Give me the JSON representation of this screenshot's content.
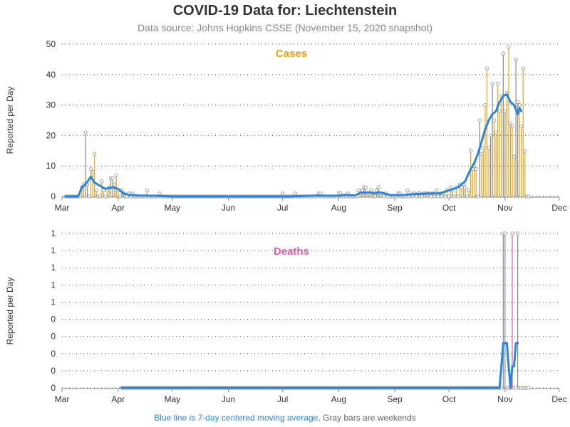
{
  "header": {
    "title": "COVID-19 Data for: Liechtenstein",
    "subtitle": "Data source: Johns Hopkins CSSE (November 15, 2020 snapshot)"
  },
  "footnote": {
    "blue_text": "Blue line is 7-day centered moving average,",
    "gray_text": "Gray bars are weekends"
  },
  "colors": {
    "cases": "#e8a317",
    "deaths": "#e85aa8",
    "moving_average": "#2b86d9",
    "weekend": "#888888"
  },
  "chart_data": [
    {
      "type": "bar",
      "panel": "cases",
      "title": "Cases",
      "ylabel": "Reported per Day",
      "ylim": [
        0,
        50
      ],
      "yticks": [
        "0",
        "10",
        "20",
        "30",
        "40",
        "50"
      ],
      "xlim": [
        "2020-03-01",
        "2020-12-01"
      ],
      "xticks": [
        "Mar",
        "Apr",
        "May",
        "Jun",
        "Jul",
        "Aug",
        "Sep",
        "Oct",
        "Nov",
        "Dec"
      ],
      "date_range": [
        "2020-03-03",
        "2020-11-14"
      ],
      "points": [
        [
          "2020-03-12",
          3
        ],
        [
          "2020-03-13",
          4
        ],
        [
          "2020-03-14",
          21
        ],
        [
          "2020-03-15",
          4
        ],
        [
          "2020-03-17",
          9
        ],
        [
          "2020-03-18",
          8
        ],
        [
          "2020-03-19",
          14
        ],
        [
          "2020-03-20",
          2
        ],
        [
          "2020-03-23",
          5
        ],
        [
          "2020-03-24",
          2
        ],
        [
          "2020-03-26",
          2
        ],
        [
          "2020-03-27",
          3
        ],
        [
          "2020-03-28",
          6
        ],
        [
          "2020-03-29",
          6
        ],
        [
          "2020-03-30",
          4
        ],
        [
          "2020-03-31",
          7
        ],
        [
          "2020-04-01",
          2
        ],
        [
          "2020-04-03",
          2
        ],
        [
          "2020-04-04",
          1
        ],
        [
          "2020-04-07",
          1
        ],
        [
          "2020-04-09",
          1
        ],
        [
          "2020-04-17",
          2
        ],
        [
          "2020-04-24",
          1
        ],
        [
          "2020-07-01",
          1
        ],
        [
          "2020-07-08",
          1
        ],
        [
          "2020-07-21",
          1
        ],
        [
          "2020-07-22",
          1
        ],
        [
          "2020-08-01",
          1
        ],
        [
          "2020-08-02",
          1
        ],
        [
          "2020-08-06",
          1
        ],
        [
          "2020-08-12",
          2
        ],
        [
          "2020-08-13",
          1
        ],
        [
          "2020-08-14",
          2
        ],
        [
          "2020-08-15",
          3
        ],
        [
          "2020-08-16",
          3
        ],
        [
          "2020-08-17",
          1
        ],
        [
          "2020-08-18",
          1
        ],
        [
          "2020-08-19",
          2
        ],
        [
          "2020-08-20",
          1
        ],
        [
          "2020-08-22",
          2
        ],
        [
          "2020-08-23",
          3
        ],
        [
          "2020-08-24",
          1
        ],
        [
          "2020-08-25",
          1
        ],
        [
          "2020-08-27",
          1
        ],
        [
          "2020-09-03",
          1
        ],
        [
          "2020-09-04",
          1
        ],
        [
          "2020-09-08",
          2
        ],
        [
          "2020-09-10",
          1
        ],
        [
          "2020-09-12",
          1
        ],
        [
          "2020-09-14",
          1
        ],
        [
          "2020-09-15",
          1
        ],
        [
          "2020-09-17",
          1
        ],
        [
          "2020-09-18",
          1
        ],
        [
          "2020-09-19",
          1
        ],
        [
          "2020-09-20",
          1
        ],
        [
          "2020-09-22",
          1
        ],
        [
          "2020-09-24",
          2
        ],
        [
          "2020-09-26",
          1
        ],
        [
          "2020-09-28",
          1
        ],
        [
          "2020-09-30",
          2
        ],
        [
          "2020-10-02",
          3
        ],
        [
          "2020-10-03",
          2
        ],
        [
          "2020-10-05",
          3
        ],
        [
          "2020-10-07",
          4
        ],
        [
          "2020-10-08",
          3
        ],
        [
          "2020-10-09",
          4
        ],
        [
          "2020-10-10",
          3
        ],
        [
          "2020-10-12",
          2
        ],
        [
          "2020-10-13",
          15
        ],
        [
          "2020-10-14",
          9
        ],
        [
          "2020-10-15",
          10
        ],
        [
          "2020-10-16",
          9
        ],
        [
          "2020-10-18",
          25
        ],
        [
          "2020-10-19",
          14
        ],
        [
          "2020-10-20",
          16
        ],
        [
          "2020-10-21",
          30
        ],
        [
          "2020-10-22",
          42
        ],
        [
          "2020-10-23",
          16
        ],
        [
          "2020-10-24",
          20
        ],
        [
          "2020-10-25",
          37
        ],
        [
          "2020-10-26",
          25
        ],
        [
          "2020-10-27",
          21
        ],
        [
          "2020-10-28",
          37
        ],
        [
          "2020-10-29",
          28
        ],
        [
          "2020-10-30",
          33
        ],
        [
          "2020-10-31",
          47
        ],
        [
          "2020-11-01",
          28
        ],
        [
          "2020-11-02",
          34
        ],
        [
          "2020-11-03",
          49
        ],
        [
          "2020-11-04",
          24
        ],
        [
          "2020-11-05",
          23
        ],
        [
          "2020-11-06",
          13
        ],
        [
          "2020-11-07",
          45
        ],
        [
          "2020-11-08",
          31
        ],
        [
          "2020-11-09",
          30
        ],
        [
          "2020-11-10",
          23
        ],
        [
          "2020-11-11",
          42
        ],
        [
          "2020-11-12",
          15
        ]
      ],
      "moving_average": [
        [
          "2020-03-03",
          0
        ],
        [
          "2020-03-10",
          0
        ],
        [
          "2020-03-12",
          3
        ],
        [
          "2020-03-14",
          4
        ],
        [
          "2020-03-17",
          6.5
        ],
        [
          "2020-03-19",
          4.5
        ],
        [
          "2020-03-22",
          3.5
        ],
        [
          "2020-03-25",
          2.5
        ],
        [
          "2020-03-29",
          3
        ],
        [
          "2020-04-01",
          2.5
        ],
        [
          "2020-04-04",
          1
        ],
        [
          "2020-04-07",
          0.5
        ],
        [
          "2020-04-12",
          0.3
        ],
        [
          "2020-04-22",
          0.2
        ],
        [
          "2020-05-01",
          0
        ],
        [
          "2020-07-05",
          0
        ],
        [
          "2020-07-20",
          0.3
        ],
        [
          "2020-07-31",
          0.2
        ],
        [
          "2020-08-05",
          0.5
        ],
        [
          "2020-08-10",
          0.3
        ],
        [
          "2020-08-13",
          1.2
        ],
        [
          "2020-08-18",
          1.3
        ],
        [
          "2020-08-21",
          1
        ],
        [
          "2020-08-23",
          1.4
        ],
        [
          "2020-08-26",
          1
        ],
        [
          "2020-08-30",
          0.4
        ],
        [
          "2020-09-05",
          0.4
        ],
        [
          "2020-09-12",
          0.8
        ],
        [
          "2020-09-20",
          1
        ],
        [
          "2020-09-26",
          1
        ],
        [
          "2020-10-01",
          2
        ],
        [
          "2020-10-06",
          3
        ],
        [
          "2020-10-10",
          5
        ],
        [
          "2020-10-13",
          9
        ],
        [
          "2020-10-15",
          11
        ],
        [
          "2020-10-17",
          14
        ],
        [
          "2020-10-19",
          18
        ],
        [
          "2020-10-21",
          22
        ],
        [
          "2020-10-23",
          25
        ],
        [
          "2020-10-25",
          27
        ],
        [
          "2020-10-27",
          28
        ],
        [
          "2020-10-29",
          31
        ],
        [
          "2020-10-31",
          33
        ],
        [
          "2020-11-02",
          33.5
        ],
        [
          "2020-11-04",
          31
        ],
        [
          "2020-11-06",
          30
        ],
        [
          "2020-11-08",
          27
        ],
        [
          "2020-11-09",
          29
        ],
        [
          "2020-11-10",
          28
        ]
      ]
    },
    {
      "type": "bar",
      "panel": "deaths",
      "title": "Deaths",
      "ylabel": "Reported per Day",
      "ylim": [
        0,
        1
      ],
      "yticks": [
        "0",
        "0",
        "0",
        "0",
        "0",
        "1",
        "1",
        "1",
        "1",
        "1"
      ],
      "xlim": [
        "2020-03-01",
        "2020-12-01"
      ],
      "xticks": [
        "Mar",
        "Apr",
        "May",
        "Jun",
        "Jul",
        "Aug",
        "Sep",
        "Oct",
        "Nov",
        "Dec"
      ],
      "date_range": [
        "2020-04-03",
        "2020-11-14"
      ],
      "points": [
        [
          "2020-10-31",
          1
        ],
        [
          "2020-11-01",
          1
        ],
        [
          "2020-11-05",
          1
        ],
        [
          "2020-11-08",
          1
        ]
      ],
      "moving_average": [
        [
          "2020-04-03",
          0
        ],
        [
          "2020-10-29",
          0
        ],
        [
          "2020-10-31",
          0.29
        ],
        [
          "2020-11-02",
          0.29
        ],
        [
          "2020-11-03",
          0.14
        ],
        [
          "2020-11-04",
          0
        ],
        [
          "2020-11-05",
          0.14
        ],
        [
          "2020-11-06",
          0.14
        ],
        [
          "2020-11-07",
          0.29
        ],
        [
          "2020-11-08",
          0.29
        ]
      ]
    }
  ]
}
